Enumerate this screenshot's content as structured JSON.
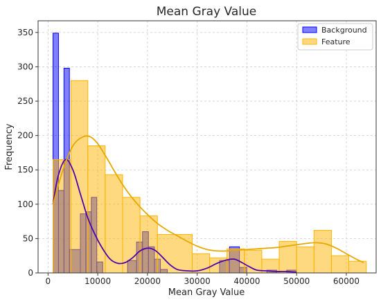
{
  "chart_data": {
    "type": "histogram",
    "title": "Mean Gray Value",
    "xlabel": "Mean Gray Value",
    "ylabel": "Frequency",
    "xlim": [
      -2000,
      66000
    ],
    "ylim": [
      0,
      367
    ],
    "x_ticks": [
      0,
      10000,
      20000,
      30000,
      40000,
      50000,
      60000
    ],
    "y_ticks": [
      0,
      50,
      100,
      150,
      200,
      250,
      300,
      350
    ],
    "grid": true,
    "legend": {
      "placement": "top-right",
      "entries": [
        "Background",
        "Feature"
      ]
    },
    "series": [
      {
        "name": "Background",
        "color": "#0000ff",
        "kde_color": "#5000b0",
        "bins": [
          {
            "x0": 1000,
            "x1": 2100,
            "count": 349
          },
          {
            "x0": 2100,
            "x1": 3200,
            "count": 120
          },
          {
            "x0": 3200,
            "x1": 4300,
            "count": 298
          },
          {
            "x0": 4300,
            "x1": 6500,
            "count": 34
          },
          {
            "x0": 6500,
            "x1": 7600,
            "count": 86
          },
          {
            "x0": 7600,
            "x1": 8700,
            "count": 89
          },
          {
            "x0": 8700,
            "x1": 9800,
            "count": 110
          },
          {
            "x0": 9800,
            "x1": 11000,
            "count": 16
          },
          {
            "x0": 16000,
            "x1": 17800,
            "count": 18
          },
          {
            "x0": 17800,
            "x1": 19000,
            "count": 45
          },
          {
            "x0": 19000,
            "x1": 20200,
            "count": 60
          },
          {
            "x0": 20200,
            "x1": 21400,
            "count": 38
          },
          {
            "x0": 21400,
            "x1": 22600,
            "count": 20
          },
          {
            "x0": 22600,
            "x1": 24000,
            "count": 5
          },
          {
            "x0": 34500,
            "x1": 36500,
            "count": 18
          },
          {
            "x0": 36500,
            "x1": 38500,
            "count": 38
          },
          {
            "x0": 38500,
            "x1": 40000,
            "count": 8
          },
          {
            "x0": 44000,
            "x1": 46000,
            "count": 4
          },
          {
            "x0": 48000,
            "x1": 50000,
            "count": 4
          }
        ],
        "kde": [
          [
            1000,
            100
          ],
          [
            2000,
            140
          ],
          [
            3500,
            165
          ],
          [
            5000,
            150
          ],
          [
            6500,
            115
          ],
          [
            8000,
            80
          ],
          [
            9500,
            55
          ],
          [
            11000,
            35
          ],
          [
            12500,
            20
          ],
          [
            14000,
            14
          ],
          [
            15500,
            15
          ],
          [
            17000,
            22
          ],
          [
            18500,
            32
          ],
          [
            20000,
            36
          ],
          [
            21500,
            33
          ],
          [
            23000,
            23
          ],
          [
            24500,
            12
          ],
          [
            26000,
            5
          ],
          [
            28000,
            3
          ],
          [
            30000,
            3
          ],
          [
            32000,
            7
          ],
          [
            34000,
            14
          ],
          [
            36000,
            19
          ],
          [
            37500,
            20
          ],
          [
            39000,
            15
          ],
          [
            40500,
            9
          ],
          [
            42000,
            4
          ],
          [
            44000,
            3
          ],
          [
            46000,
            2
          ],
          [
            48000,
            2
          ],
          [
            50000,
            1
          ]
        ]
      },
      {
        "name": "Feature",
        "color": "#ffb400",
        "kde_color": "#e6a800",
        "bins": [
          {
            "x0": 1000,
            "x1": 4600,
            "count": 165
          },
          {
            "x0": 4600,
            "x1": 8000,
            "count": 280
          },
          {
            "x0": 8000,
            "x1": 11500,
            "count": 185
          },
          {
            "x0": 11500,
            "x1": 15000,
            "count": 143
          },
          {
            "x0": 15000,
            "x1": 18500,
            "count": 110
          },
          {
            "x0": 18500,
            "x1": 22000,
            "count": 83
          },
          {
            "x0": 22000,
            "x1": 29000,
            "count": 56
          },
          {
            "x0": 29000,
            "x1": 32500,
            "count": 28
          },
          {
            "x0": 32500,
            "x1": 36000,
            "count": 22
          },
          {
            "x0": 36000,
            "x1": 39500,
            "count": 35
          },
          {
            "x0": 39500,
            "x1": 43000,
            "count": 33
          },
          {
            "x0": 43000,
            "x1": 46500,
            "count": 20
          },
          {
            "x0": 46500,
            "x1": 50000,
            "count": 46
          },
          {
            "x0": 50000,
            "x1": 53500,
            "count": 38
          },
          {
            "x0": 53500,
            "x1": 57000,
            "count": 62
          },
          {
            "x0": 57000,
            "x1": 60500,
            "count": 25
          },
          {
            "x0": 60500,
            "x1": 64000,
            "count": 17
          }
        ],
        "kde": [
          [
            1000,
            100
          ],
          [
            3000,
            150
          ],
          [
            5000,
            185
          ],
          [
            7000,
            198
          ],
          [
            8500,
            198
          ],
          [
            10000,
            188
          ],
          [
            12000,
            165
          ],
          [
            14000,
            140
          ],
          [
            16000,
            118
          ],
          [
            18000,
            100
          ],
          [
            20000,
            85
          ],
          [
            22000,
            72
          ],
          [
            24000,
            62
          ],
          [
            26000,
            54
          ],
          [
            28000,
            46
          ],
          [
            30000,
            39
          ],
          [
            32000,
            34
          ],
          [
            34000,
            32
          ],
          [
            36000,
            32
          ],
          [
            38000,
            33
          ],
          [
            40000,
            34
          ],
          [
            42000,
            35
          ],
          [
            44000,
            36
          ],
          [
            46000,
            37
          ],
          [
            48000,
            39
          ],
          [
            50000,
            41
          ],
          [
            52000,
            43
          ],
          [
            54000,
            44
          ],
          [
            56000,
            42
          ],
          [
            58000,
            36
          ],
          [
            60000,
            28
          ],
          [
            62000,
            20
          ],
          [
            63500,
            15
          ]
        ]
      }
    ]
  }
}
